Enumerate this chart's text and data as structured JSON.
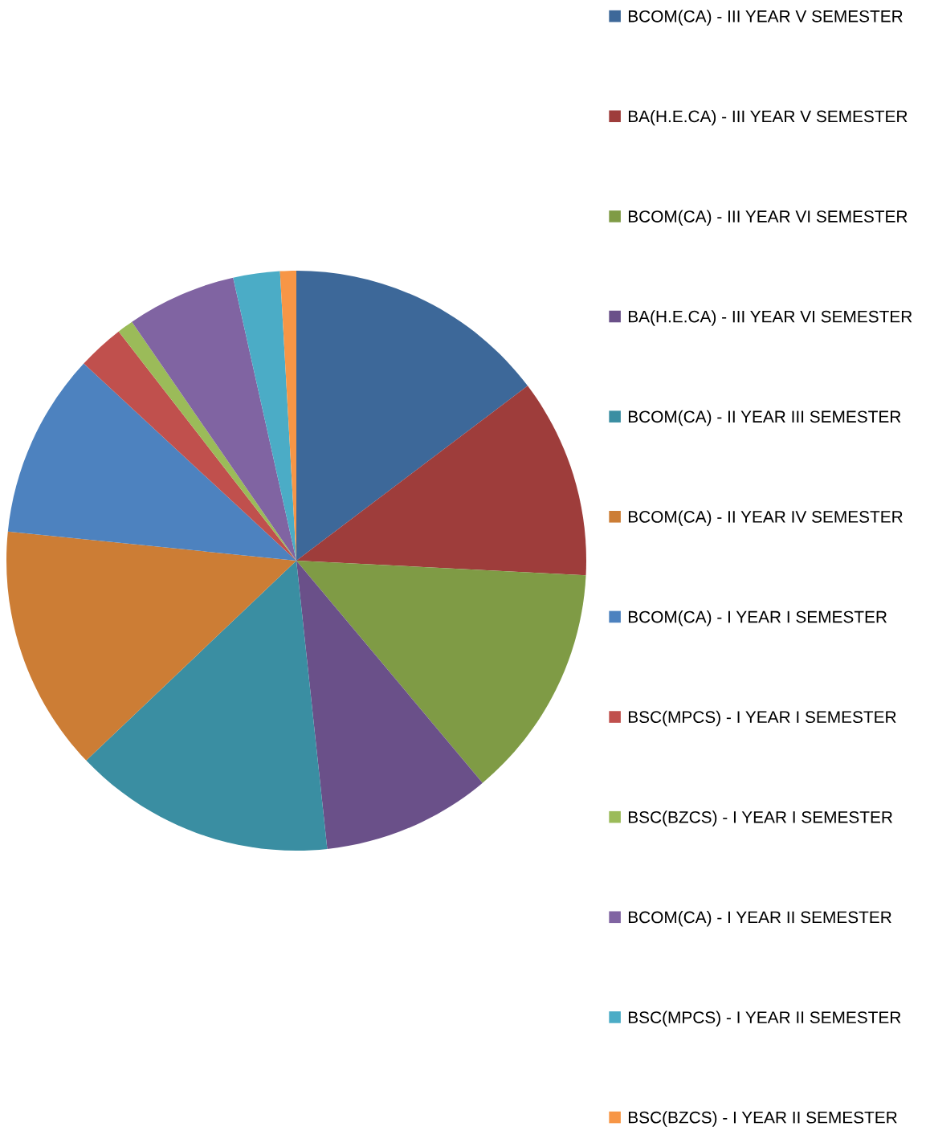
{
  "chart_data": {
    "type": "pie",
    "legend": "right",
    "categories": [
      "BCOM(CA) - III YEAR V SEMESTER",
      "BA(H.E.CA) - III YEAR V SEMESTER",
      "BCOM(CA) - III YEAR VI SEMESTER",
      "BA(H.E.CA) - III YEAR VI SEMESTER",
      "BCOM(CA) - II YEAR III SEMESTER",
      "BCOM(CA) - II YEAR IV SEMESTER",
      "BCOM(CA) - I YEAR I SEMESTER",
      "BSC(MPCS) - I YEAR I SEMESTER",
      "BSC(BZCS) - I YEAR I SEMESTER",
      "BCOM(CA) - I YEAR II SEMESTER",
      "BSC(MPCS) - I YEAR II SEMESTER",
      "BSC(BZCS) - I YEAR II SEMESTER"
    ],
    "values": [
      14.7,
      11.1,
      13.1,
      9.4,
      14.6,
      13.7,
      10.3,
      2.6,
      0.9,
      6.1,
      2.6,
      0.9
    ],
    "colors": [
      "#3d6899",
      "#9e3d3b",
      "#7f9b45",
      "#6a5089",
      "#3a8ea2",
      "#cc7d35",
      "#4d82bf",
      "#c0504d",
      "#9bbb59",
      "#8064a2",
      "#4bacc6",
      "#f79646"
    ]
  }
}
